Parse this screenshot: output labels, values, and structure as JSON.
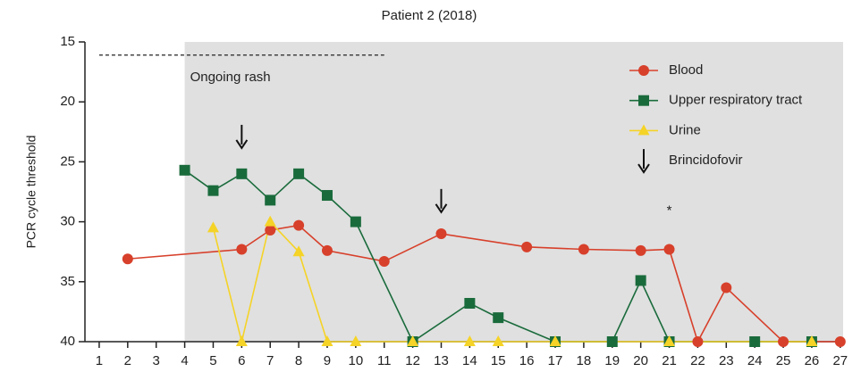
{
  "chart_data": {
    "type": "line",
    "title": "Patient 2 (2018)",
    "y_label": "PCR cycle threshold",
    "xticks": [
      1,
      2,
      3,
      4,
      5,
      6,
      7,
      8,
      9,
      10,
      11,
      12,
      13,
      14,
      15,
      16,
      17,
      18,
      19,
      20,
      21,
      22,
      23,
      24,
      25,
      26,
      27
    ],
    "xlim": [
      0.5,
      27.1
    ],
    "ylim": [
      40,
      15
    ],
    "yticks": [
      15,
      20,
      25,
      30,
      35,
      40
    ],
    "shade": {
      "x": [
        4,
        27.1
      ],
      "color": "#e0e0e0"
    },
    "rash": {
      "text": "Ongoing rash",
      "x": [
        1,
        11
      ],
      "y": 16.1
    },
    "series": [
      {
        "name": "Blood",
        "color": "#d7402b",
        "marker": "circle",
        "x": [
          2,
          6,
          7,
          8,
          9,
          11,
          13,
          16,
          18,
          20,
          21,
          22,
          23,
          25,
          27
        ],
        "values": [
          33.1,
          32.3,
          30.7,
          30.3,
          32.4,
          33.3,
          31.0,
          32.1,
          32.3,
          32.4,
          32.3,
          40,
          35.5,
          40,
          40
        ]
      },
      {
        "name": "Upper respiratory tract",
        "color": "#1a6b3c",
        "marker": "square",
        "x": [
          4,
          5,
          6,
          7,
          8,
          9,
          10,
          12,
          14,
          15,
          17,
          19,
          20,
          21,
          24,
          26
        ],
        "values": [
          25.7,
          27.4,
          26.0,
          28.2,
          26.0,
          27.8,
          30.0,
          40,
          36.8,
          38.0,
          40,
          40,
          34.9,
          40,
          40,
          40
        ]
      },
      {
        "name": "Urine",
        "color": "#f5d327",
        "marker": "triangle",
        "x": [
          5,
          6,
          7,
          8,
          9,
          10,
          12,
          14,
          15,
          17,
          21,
          26
        ],
        "values": [
          30.5,
          40,
          30.0,
          32.5,
          40,
          40,
          40,
          40,
          40,
          40,
          40,
          40
        ]
      }
    ],
    "arrow_label": "Brincidofovir",
    "arrows": [
      {
        "x": 6,
        "y": 23.85
      },
      {
        "x": 13,
        "y": 29.2
      }
    ],
    "annotations": [
      {
        "text": "*",
        "x": 21,
        "y": 29.1
      }
    ]
  }
}
